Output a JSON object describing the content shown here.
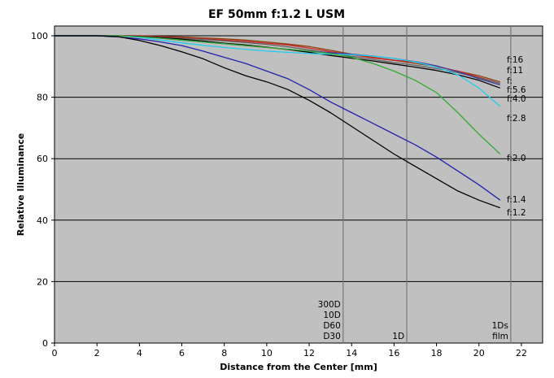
{
  "chart_data": {
    "type": "line",
    "title": "EF 50mm f:1.2 L USM",
    "xlabel": "Distance from the Center [mm]",
    "ylabel": "Relative Illuminance",
    "xlim": [
      0,
      23
    ],
    "ylim": [
      0,
      100
    ],
    "xticks": [
      "0",
      "2",
      "4",
      "6",
      "8",
      "10",
      "12",
      "14",
      "16",
      "18",
      "20",
      "22"
    ],
    "yticks": [
      "0",
      "20",
      "40",
      "60",
      "80",
      "100"
    ],
    "grid": "horizontal",
    "background": "#c0c0c0",
    "series": [
      {
        "name": "f:16",
        "color": "#8b4513",
        "x": [
          0,
          1,
          2,
          3,
          4,
          5,
          6,
          7,
          8,
          9,
          10,
          11,
          12,
          13,
          14,
          15,
          16,
          17,
          18,
          19,
          20,
          21
        ],
        "y": [
          100,
          100,
          100,
          100,
          100,
          99.8,
          99.6,
          99.3,
          99,
          98.6,
          98,
          97.3,
          96.5,
          95.3,
          94,
          93,
          92,
          91,
          90,
          88.5,
          87,
          85
        ]
      },
      {
        "name": "f:11",
        "color": "#cc2222",
        "x": [
          0,
          1,
          2,
          3,
          4,
          5,
          6,
          7,
          8,
          9,
          10,
          11,
          12,
          13,
          14,
          15,
          16,
          17,
          18,
          19,
          20,
          21
        ],
        "y": [
          100,
          100,
          100,
          100,
          100,
          99.7,
          99.4,
          99,
          98.6,
          98.2,
          97.6,
          97,
          96,
          94.8,
          93.8,
          92.8,
          92,
          91.5,
          90,
          88.5,
          86.5,
          84.5
        ]
      },
      {
        "name": "f:",
        "color": "#606060",
        "x": [
          0,
          1,
          2,
          3,
          4,
          5,
          6,
          7,
          8,
          9,
          10,
          11,
          12,
          13,
          14,
          15,
          16,
          17,
          18,
          19,
          20,
          21
        ],
        "y": [
          100,
          100,
          100,
          100,
          99.8,
          99.5,
          99.2,
          98.8,
          98.3,
          97.8,
          97.2,
          96.4,
          95.4,
          94.3,
          93.3,
          92.3,
          91.3,
          90.4,
          89.3,
          88,
          86.3,
          84.5
        ]
      },
      {
        "name": "f:5.6",
        "color": "#4040a0",
        "x": [
          0,
          1,
          2,
          3,
          4,
          5,
          6,
          7,
          8,
          9,
          10,
          11,
          12,
          13,
          14,
          15,
          16,
          17,
          18,
          19,
          20,
          21
        ],
        "y": [
          100,
          100,
          100,
          100,
          99.7,
          99.2,
          98.6,
          98,
          97.4,
          96.8,
          96.2,
          95.6,
          95,
          94.5,
          94,
          93.4,
          92.6,
          91.6,
          90.2,
          88.3,
          86,
          84
        ]
      },
      {
        "name": "f:4.0",
        "color": "#000000",
        "x": [
          0,
          1,
          2,
          3,
          4,
          5,
          6,
          7,
          8,
          9,
          10,
          11,
          12,
          13,
          14,
          15,
          16,
          17,
          18,
          19,
          20,
          21
        ],
        "y": [
          100,
          100,
          100,
          100,
          99.8,
          99.4,
          98.9,
          98.3,
          97.6,
          97,
          96.3,
          95.5,
          94.6,
          93.6,
          92.7,
          91.8,
          90.8,
          89.8,
          88.7,
          87.3,
          85.5,
          83
        ]
      },
      {
        "name": "f:2.8",
        "color": "#22ccee",
        "x": [
          0,
          1,
          2,
          3,
          4,
          5,
          6,
          7,
          8,
          9,
          10,
          11,
          12,
          13,
          14,
          15,
          16,
          17,
          18,
          19,
          20,
          21
        ],
        "y": [
          100,
          100,
          100,
          100,
          99.5,
          98.6,
          97.7,
          96.9,
          96.2,
          95.6,
          95,
          94.6,
          94.2,
          94,
          93.8,
          93.4,
          92.6,
          91.5,
          89.8,
          87.3,
          83,
          77
        ]
      },
      {
        "name": "f:2.0",
        "color": "#33aa33",
        "x": [
          0,
          1,
          2,
          3,
          4,
          5,
          6,
          7,
          8,
          9,
          10,
          11,
          12,
          13,
          14,
          15,
          16,
          17,
          18,
          19,
          20,
          21
        ],
        "y": [
          100,
          100,
          100,
          100,
          99.7,
          99.2,
          98.6,
          98,
          97.4,
          96.8,
          96.2,
          95.6,
          95,
          94.2,
          93,
          91,
          88.5,
          85.5,
          81.5,
          75,
          68,
          61.5
        ]
      },
      {
        "name": "f:1.4",
        "color": "#2222aa",
        "x": [
          0,
          1,
          2,
          3,
          4,
          5,
          6,
          7,
          8,
          9,
          10,
          11,
          12,
          13,
          14,
          15,
          16,
          17,
          18,
          19,
          20,
          21
        ],
        "y": [
          100,
          100,
          100,
          99.6,
          99,
          98,
          96.8,
          95,
          93,
          91,
          88.5,
          86,
          82.5,
          78.5,
          75,
          71.5,
          68,
          64.5,
          60.5,
          56,
          51.5,
          46.5
        ]
      },
      {
        "name": "f:1.2",
        "color": "#000000",
        "x": [
          0,
          1,
          2,
          3,
          4,
          5,
          6,
          7,
          8,
          9,
          10,
          11,
          12,
          13,
          14,
          15,
          16,
          17,
          18,
          19,
          20,
          21
        ],
        "y": [
          100,
          100,
          100,
          99.7,
          98.5,
          96.8,
          94.8,
          92.5,
          89.6,
          87,
          85,
          82.5,
          79,
          75,
          70.5,
          66,
          61.5,
          57.5,
          53.5,
          49.5,
          46.5,
          44
        ]
      }
    ],
    "markers": [
      {
        "x": 13.6,
        "labels": [
          "300D",
          "10D",
          "D60",
          "D30"
        ]
      },
      {
        "x": 16.6,
        "labels": [
          "1D"
        ]
      },
      {
        "x": 21.5,
        "labels": [
          "1Ds",
          "film"
        ]
      }
    ]
  }
}
